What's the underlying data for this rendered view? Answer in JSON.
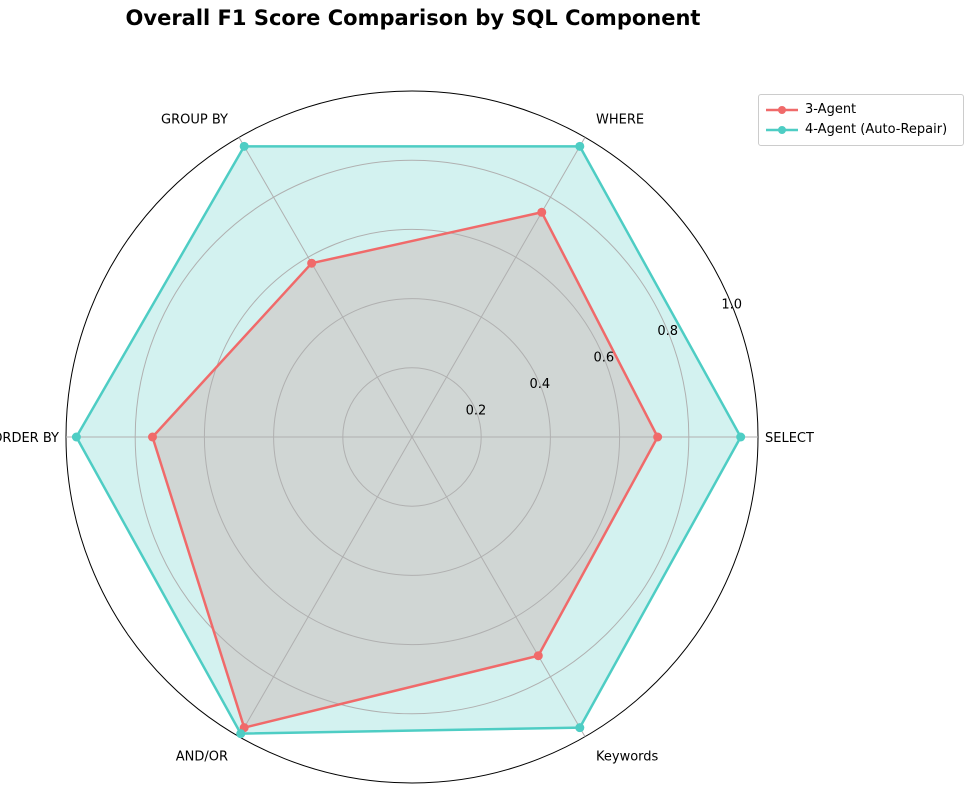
{
  "chart_data": {
    "type": "radar",
    "title": "Overall F1 Score Comparison by SQL Component",
    "categories": [
      "SELECT",
      "WHERE",
      "GROUP BY",
      "ORDER BY",
      "AND/OR",
      "Keywords"
    ],
    "rlim": [
      0,
      1.0
    ],
    "r_ticks": [
      "0.2",
      "0.4",
      "0.6",
      "0.8",
      "1.0"
    ],
    "grid": true,
    "legend_position": "top-right, outside plot",
    "series": [
      {
        "name": "3-Agent",
        "color": "#f06a6a",
        "values": [
          0.71,
          0.75,
          0.58,
          0.75,
          0.97,
          0.73
        ]
      },
      {
        "name": "4-Agent (Auto-Repair)",
        "color": "#4ecdc4",
        "values": [
          0.95,
          0.97,
          0.97,
          0.97,
          0.99,
          0.97
        ]
      }
    ]
  }
}
